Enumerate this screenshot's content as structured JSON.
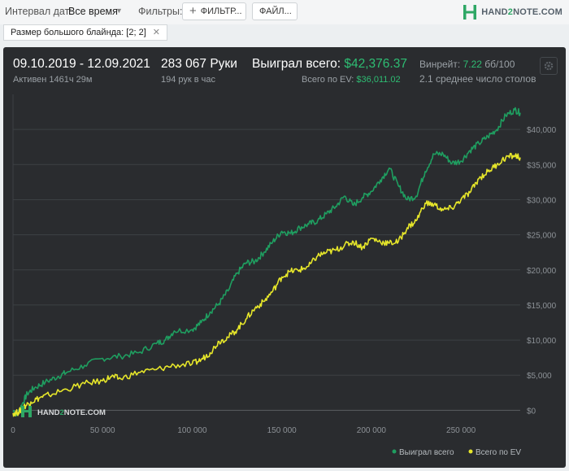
{
  "toolbar": {
    "interval_label": "Интервал дат:",
    "interval_value": "Все время",
    "filters_label": "Фильтры:",
    "filters_button": "ФИЛЬТР...",
    "files_button": "ФАЙЛ...",
    "logo_prefix": "HAND",
    "logo_two": "2",
    "logo_suffix": "NOTE.COM"
  },
  "filter_chip": {
    "label": "Размер большого блайнда: [2; 2]"
  },
  "stats": {
    "date_range": "09.10.2019 - 12.09.2021",
    "active": "Активен 1461ч 29м",
    "hands": "283 067 Руки",
    "hands_per_hour": "194 рук в час",
    "won_label": "Выиграл всего:",
    "won_value": "$42,376.37",
    "ev_label": "Всего по EV:",
    "ev_value": "$36,011.02",
    "winrate_label": "Винрейт:",
    "winrate_value": "7.22",
    "winrate_unit": "бб/100",
    "tables": "2.1 среднее число столов"
  },
  "watermark": {
    "prefix": "HAND",
    "two": "2",
    "suffix": "NOTE.COM"
  },
  "colors": {
    "won": "#1f9e60",
    "ev": "#e6e62a",
    "accent": "#2ebd73"
  },
  "chart_data": {
    "type": "line",
    "x_ticks": [
      "0",
      "50 000",
      "100 000",
      "150 000",
      "200 000",
      "250 000"
    ],
    "y_ticks": [
      "$0",
      "$5,000",
      "$10,000",
      "$15,000",
      "$20,000",
      "$25,000",
      "$30,000",
      "$35,000",
      "$40,000"
    ],
    "xlim": [
      0,
      283067
    ],
    "ylim": [
      -1000,
      45000
    ],
    "grid": true,
    "legend_position": "bottom-right",
    "series": [
      {
        "name": "Выиграл всего",
        "color": "#1f9e60",
        "points": [
          [
            0,
            0
          ],
          [
            2500,
            -600
          ],
          [
            5000,
            800
          ],
          [
            8000,
            2400
          ],
          [
            12000,
            3200
          ],
          [
            18000,
            4000
          ],
          [
            25000,
            4800
          ],
          [
            30000,
            5400
          ],
          [
            40000,
            6400
          ],
          [
            50000,
            7400
          ],
          [
            60000,
            7700
          ],
          [
            70000,
            8200
          ],
          [
            80000,
            9500
          ],
          [
            85000,
            10000
          ],
          [
            90000,
            11300
          ],
          [
            100000,
            11500
          ],
          [
            105000,
            12500
          ],
          [
            110000,
            14000
          ],
          [
            115000,
            15200
          ],
          [
            120000,
            17000
          ],
          [
            125000,
            19500
          ],
          [
            130000,
            21000
          ],
          [
            135000,
            21200
          ],
          [
            140000,
            22500
          ],
          [
            145000,
            24000
          ],
          [
            150000,
            25500
          ],
          [
            155000,
            25200
          ],
          [
            160000,
            26000
          ],
          [
            165000,
            26500
          ],
          [
            170000,
            27000
          ],
          [
            175000,
            28000
          ],
          [
            180000,
            29000
          ],
          [
            185000,
            30500
          ],
          [
            190000,
            29200
          ],
          [
            195000,
            30300
          ],
          [
            200000,
            31200
          ],
          [
            205000,
            32800
          ],
          [
            210000,
            34500
          ],
          [
            215000,
            32000
          ],
          [
            220000,
            30000
          ],
          [
            225000,
            30500
          ],
          [
            230000,
            34000
          ],
          [
            235000,
            36500
          ],
          [
            240000,
            36500
          ],
          [
            245000,
            35200
          ],
          [
            250000,
            35500
          ],
          [
            255000,
            37000
          ],
          [
            260000,
            38000
          ],
          [
            265000,
            39000
          ],
          [
            270000,
            40000
          ],
          [
            275000,
            42000
          ],
          [
            280000,
            42800
          ],
          [
            283067,
            42376
          ]
        ]
      },
      {
        "name": "Всего по EV",
        "color": "#e6e62a",
        "points": [
          [
            0,
            -400
          ],
          [
            3000,
            -300
          ],
          [
            6000,
            500
          ],
          [
            10000,
            1200
          ],
          [
            15000,
            1800
          ],
          [
            20000,
            2200
          ],
          [
            30000,
            3000
          ],
          [
            40000,
            3800
          ],
          [
            50000,
            4200
          ],
          [
            55000,
            4800
          ],
          [
            60000,
            4500
          ],
          [
            70000,
            5400
          ],
          [
            80000,
            5800
          ],
          [
            90000,
            6400
          ],
          [
            100000,
            6600
          ],
          [
            105000,
            7200
          ],
          [
            110000,
            8200
          ],
          [
            115000,
            9800
          ],
          [
            120000,
            10400
          ],
          [
            125000,
            11500
          ],
          [
            130000,
            13000
          ],
          [
            135000,
            14500
          ],
          [
            140000,
            15500
          ],
          [
            145000,
            17000
          ],
          [
            150000,
            19000
          ],
          [
            155000,
            19800
          ],
          [
            160000,
            20000
          ],
          [
            165000,
            20500
          ],
          [
            170000,
            22000
          ],
          [
            175000,
            22500
          ],
          [
            180000,
            22800
          ],
          [
            185000,
            23500
          ],
          [
            190000,
            24000
          ],
          [
            195000,
            23200
          ],
          [
            200000,
            24500
          ],
          [
            205000,
            24000
          ],
          [
            210000,
            23800
          ],
          [
            215000,
            24000
          ],
          [
            220000,
            26000
          ],
          [
            225000,
            27000
          ],
          [
            230000,
            29500
          ],
          [
            235000,
            29300
          ],
          [
            240000,
            28500
          ],
          [
            245000,
            28800
          ],
          [
            250000,
            30000
          ],
          [
            255000,
            31000
          ],
          [
            260000,
            33000
          ],
          [
            265000,
            34000
          ],
          [
            270000,
            35000
          ],
          [
            275000,
            36000
          ],
          [
            280000,
            36300
          ],
          [
            283067,
            36011
          ]
        ]
      }
    ]
  }
}
